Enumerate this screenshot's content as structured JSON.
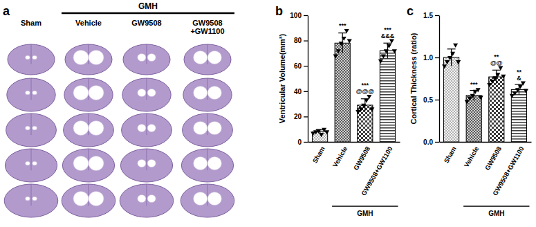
{
  "image_panel": {
    "label": "a",
    "group_label": "GMH",
    "columns": [
      [
        "Sham"
      ],
      [
        "Vehicle"
      ],
      [
        "GW9508"
      ],
      [
        "GW9508",
        "+GW1100"
      ]
    ]
  },
  "chart_data": [
    {
      "panel": "b",
      "type": "bar",
      "y_label": "Ventricular Volume(mm³)",
      "categories": [
        "Sham",
        "Vehicle",
        "GW9508",
        "GW9508+GW1100"
      ],
      "values": [
        8,
        78,
        29,
        72
      ],
      "errors": [
        1.5,
        8,
        5,
        6
      ],
      "points": [
        [
          7,
          8,
          9,
          6,
          10,
          8
        ],
        [
          68,
          72,
          78,
          82,
          88,
          80
        ],
        [
          24,
          26,
          29,
          33,
          36,
          26
        ],
        [
          64,
          68,
          72,
          76,
          80,
          72
        ]
      ],
      "significance": [
        [],
        [
          "***"
        ],
        [
          "***",
          "@@@"
        ],
        [
          "***",
          "&&&"
        ]
      ],
      "group_label": "GMH",
      "color": "#404040",
      "marker": "triangle-down",
      "ylim": [
        0,
        100
      ],
      "yticks": [
        0,
        20,
        40,
        60,
        80,
        100
      ]
    },
    {
      "panel": "c",
      "type": "bar",
      "y_label": "Cortical Thickness (ratio)",
      "categories": [
        "Sham",
        "Vehicle",
        "GW9508",
        "GW9508+GW1100"
      ],
      "values": [
        1.0,
        0.55,
        0.77,
        0.62
      ],
      "errors": [
        0.1,
        0.06,
        0.08,
        0.06
      ],
      "points": [
        [
          0.9,
          0.95,
          1.0,
          1.05,
          1.15,
          0.95
        ],
        [
          0.48,
          0.52,
          0.55,
          0.6,
          0.62,
          0.53
        ],
        [
          0.68,
          0.72,
          0.76,
          0.8,
          0.88,
          0.78
        ],
        [
          0.55,
          0.58,
          0.62,
          0.66,
          0.7,
          0.61
        ]
      ],
      "significance": [
        [],
        [
          "***"
        ],
        [
          "**",
          "@@"
        ],
        [
          "**",
          "&"
        ]
      ],
      "group_label": "GMH",
      "color": "#404040",
      "marker": "triangle-down",
      "ylim": [
        0,
        1.5
      ],
      "yticks": [
        {
          "value": 0,
          "label": "0.0"
        },
        0.5,
        {
          "value": 1,
          "label": "1.0"
        },
        1.5
      ]
    }
  ]
}
